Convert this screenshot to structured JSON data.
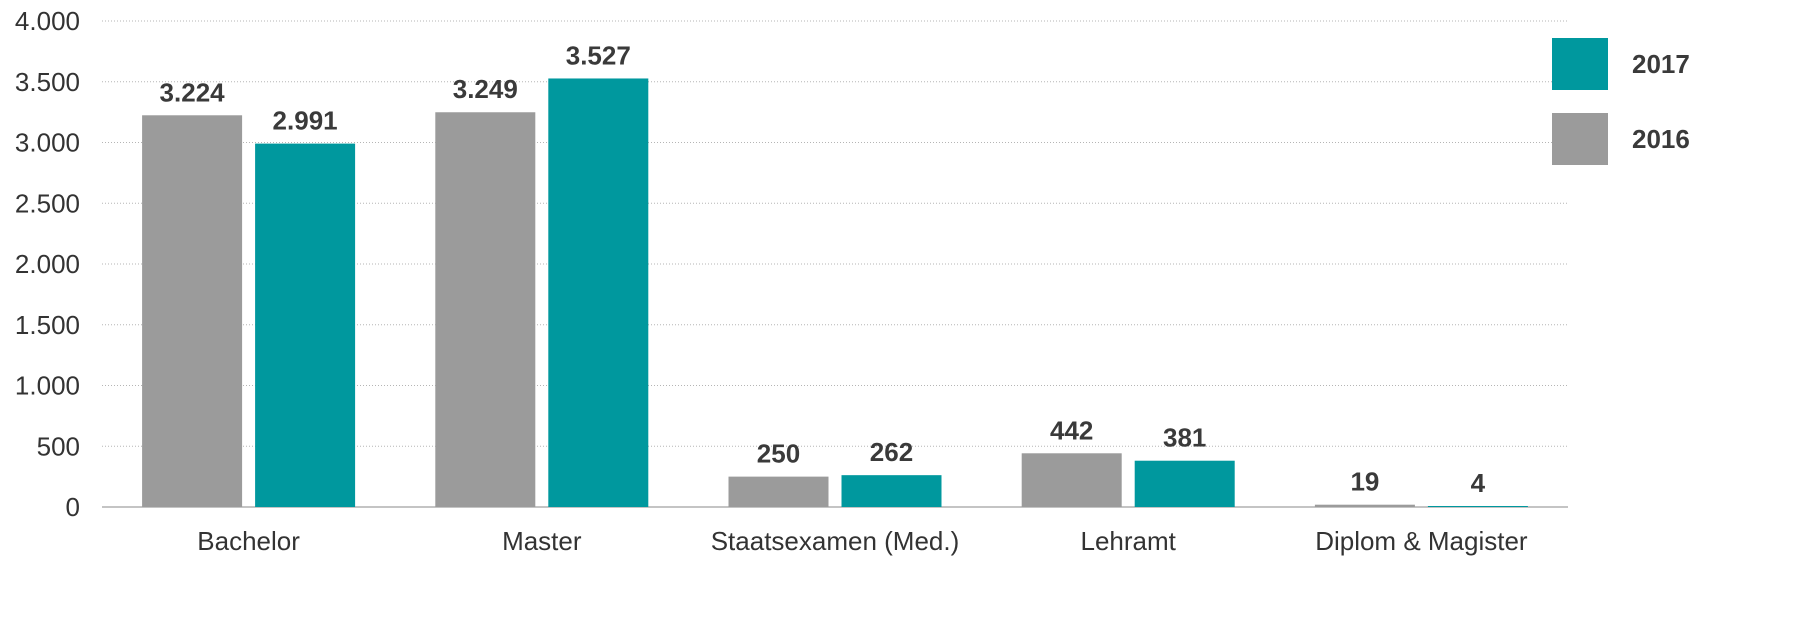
{
  "chart_data": {
    "type": "bar",
    "categories": [
      "Bachelor",
      "Master",
      "Staatsexamen (Med.)",
      "Lehramt",
      "Diplom & Magister"
    ],
    "series": [
      {
        "name": "2016",
        "values": [
          3224,
          3249,
          250,
          442,
          19
        ],
        "labels": [
          "3.224",
          "3.249",
          "250",
          "442",
          "19"
        ],
        "color": "#9b9b9b"
      },
      {
        "name": "2017",
        "values": [
          2991,
          3527,
          262,
          381,
          4
        ],
        "labels": [
          "2.991",
          "3.527",
          "262",
          "381",
          "4"
        ],
        "color": "#00989e"
      }
    ],
    "yticks": [
      0,
      500,
      1000,
      1500,
      2000,
      2500,
      3000,
      3500,
      4000
    ],
    "ytick_labels": [
      "0",
      "500",
      "1.000",
      "1.500",
      "2.000",
      "2.500",
      "3.000",
      "3.500",
      "4.000"
    ],
    "ylim": [
      0,
      4000
    ],
    "grid": true,
    "legend": {
      "placement": "top-right",
      "entries": [
        {
          "name": "2017",
          "color": "#00989e"
        },
        {
          "name": "2016",
          "color": "#9b9b9b"
        }
      ]
    }
  }
}
